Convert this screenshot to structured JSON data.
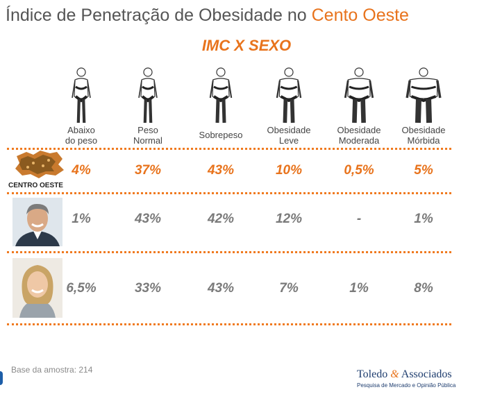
{
  "title": {
    "part1": "Índice de Penetração de Obesidade no ",
    "part2": "Cento Oeste"
  },
  "subtitle": "IMC X SEXO",
  "chart_data": {
    "type": "table",
    "title": "Índice de Penetração de Obesidade no Cento Oeste",
    "subtitle": "IMC X SEXO",
    "categories": [
      [
        "Abaixo",
        "do peso"
      ],
      [
        "Peso",
        "Normal"
      ],
      [
        "Sobrepeso"
      ],
      [
        "Obesidade",
        "Leve"
      ],
      [
        "Obesidade",
        "Moderada"
      ],
      [
        "Obesidade",
        "Mórbida"
      ]
    ],
    "series": [
      {
        "name": "CENTRO OESTE",
        "values": [
          "4%",
          "37%",
          "43%",
          "10%",
          "0,5%",
          "5%"
        ],
        "color": "#e8731c"
      },
      {
        "values": [
          "1%",
          "43%",
          "42%",
          "12%",
          "-",
          "1%"
        ],
        "color": "#7a7a7a"
      },
      {
        "values": [
          "6,5%",
          "33%",
          "43%",
          "7%",
          "1%",
          "8%"
        ],
        "color": "#7a7a7a"
      }
    ]
  },
  "footer": {
    "base": "Base da amostra: 214"
  },
  "logo": {
    "name_a": "Toledo ",
    "amp": "&",
    "name_b": " Associados",
    "tagline": "Pesquisa de Mercado e Opinião Pública"
  },
  "icons": [
    "body-silhouette-icon",
    "region-map-icon",
    "man-photo",
    "woman-photo"
  ]
}
